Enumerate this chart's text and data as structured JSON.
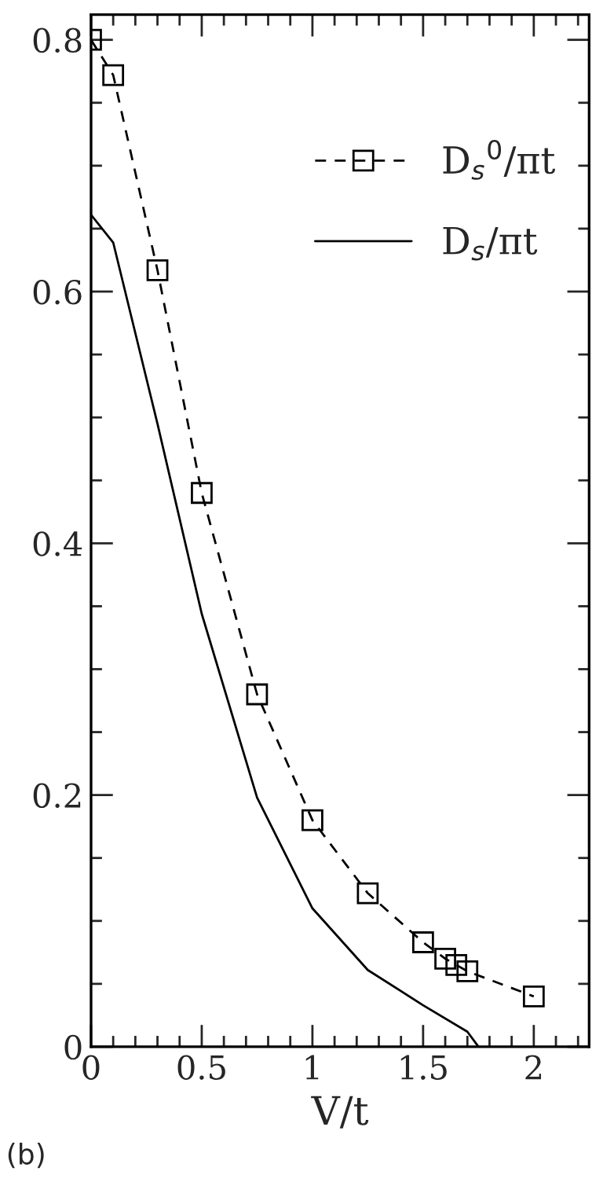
{
  "chart_data": {
    "type": "line",
    "xlabel": "V/t",
    "annotations": [
      "(b)"
    ],
    "xlim": [
      0,
      2.25
    ],
    "xticks": [
      0,
      0.5,
      1,
      1.5,
      2
    ],
    "ylim": [
      0,
      0.82
    ],
    "yticks": [
      0,
      0.2,
      0.4,
      0.6,
      0.8
    ],
    "legend": "top right",
    "grid": false,
    "series": [
      {
        "name": "D$_{s}$$^{0}$/πt",
        "color": "#000000",
        "marker": "square",
        "line_style": "dashed",
        "x": [
          0,
          0.1,
          0.3,
          0.5,
          0.75,
          1.0,
          1.25,
          1.5,
          1.6,
          1.65,
          1.7,
          2.0
        ],
        "values": [
          0.8,
          0.772,
          0.617,
          0.44,
          0.28,
          0.18,
          0.122,
          0.083,
          0.07,
          0.065,
          0.06,
          0.04
        ]
      },
      {
        "name": "D$_{s}$/πt",
        "color": "#000000",
        "marker": "none",
        "line_style": "solid",
        "x": [
          0,
          0.1,
          0.3,
          0.5,
          0.75,
          1.0,
          1.25,
          1.5,
          1.7,
          1.75
        ],
        "values": [
          0.661,
          0.639,
          0.495,
          0.344,
          0.198,
          0.11,
          0.061,
          0.033,
          0.012,
          0
        ]
      }
    ]
  }
}
